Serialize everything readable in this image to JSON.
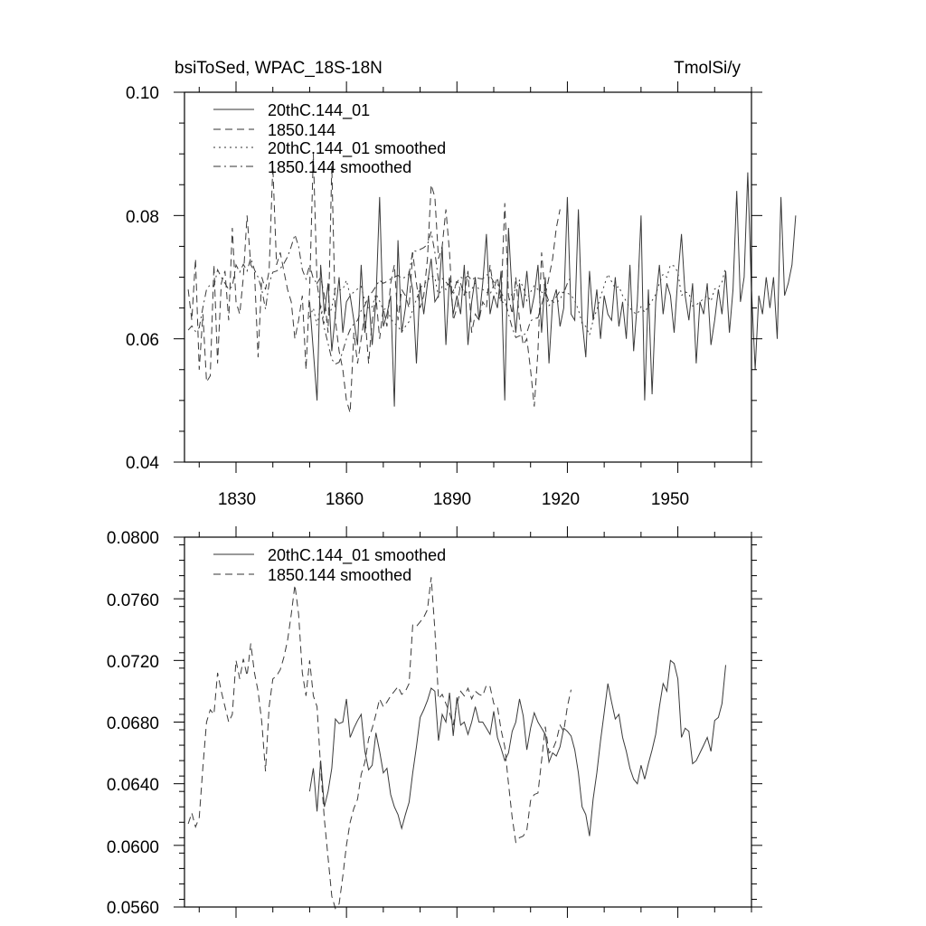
{
  "chart_data": [
    {
      "type": "line",
      "title_left": "bsiToSed, WPAC_18S-18N",
      "title_right": "TmolSi/y",
      "xlim": [
        1816,
        1970
      ],
      "ylim": [
        0.04,
        0.1
      ],
      "xticks": [
        1830,
        1860,
        1890,
        1920,
        1950
      ],
      "xtick_labels": [
        "1830",
        "1860",
        "1890",
        "1920",
        "1950"
      ],
      "yticks": [
        0.04,
        0.06,
        0.08,
        0.1
      ],
      "ytick_labels": [
        "0.04",
        "0.06",
        "0.08",
        "0.10"
      ],
      "legend": [
        "20thC.144_01",
        "1850.144",
        "20thC.144_01 smoothed",
        "1850.144 smoothed"
      ],
      "series": [
        {
          "name": "20thC.144_01",
          "style": "solid",
          "x_start": 1850,
          "values": [
            0.066,
            0.058,
            0.05,
            0.072,
            0.064,
            0.069,
            0.058,
            0.064,
            0.07,
            0.061,
            0.066,
            0.067,
            0.063,
            0.059,
            0.072,
            0.061,
            0.067,
            0.059,
            0.066,
            0.083,
            0.062,
            0.064,
            0.067,
            0.049,
            0.076,
            0.061,
            0.065,
            0.071,
            0.068,
            0.056,
            0.069,
            0.064,
            0.069,
            0.073,
            0.066,
            0.067,
            0.075,
            0.059,
            0.07,
            0.064,
            0.067,
            0.064,
            0.072,
            0.059,
            0.066,
            0.07,
            0.063,
            0.069,
            0.077,
            0.064,
            0.067,
            0.065,
            0.071,
            0.05,
            0.078,
            0.067,
            0.061,
            0.069,
            0.065,
            0.071,
            0.064,
            0.067,
            0.072,
            0.061,
            0.07,
            0.056,
            0.066,
            0.068,
            0.062,
            0.065,
            0.083,
            0.064,
            0.063,
            0.081,
            0.063,
            0.057,
            0.071,
            0.063,
            0.068,
            0.06,
            0.067,
            0.064,
            0.063,
            0.07,
            0.062,
            0.066,
            0.06,
            0.072,
            0.058,
            0.066,
            0.08,
            0.05,
            0.068,
            0.051,
            0.066,
            0.072,
            0.064,
            0.069,
            0.067,
            0.061,
            0.07,
            0.077,
            0.067,
            0.063,
            0.069,
            0.056,
            0.066,
            0.064,
            0.069,
            0.059,
            0.063,
            0.068,
            0.064,
            0.071,
            0.061,
            0.068,
            0.084,
            0.066,
            0.07,
            0.087,
            0.068,
            0.055,
            0.067,
            0.064,
            0.07,
            0.065,
            0.07,
            0.06,
            0.083,
            0.067,
            0.069,
            0.072,
            0.08
          ]
        },
        {
          "name": "1850.144",
          "style": "dashed",
          "x_start": 1817,
          "values": [
            0.068,
            0.063,
            0.073,
            0.055,
            0.064,
            0.053,
            0.054,
            0.072,
            0.056,
            0.069,
            0.071,
            0.063,
            0.078,
            0.066,
            0.064,
            0.07,
            0.08,
            0.072,
            0.071,
            0.057,
            0.07,
            0.068,
            0.071,
            0.088,
            0.072,
            0.074,
            0.071,
            0.068,
            0.066,
            0.06,
            0.063,
            0.067,
            0.055,
            0.068,
            0.09,
            0.069,
            0.07,
            0.067,
            0.061,
            0.088,
            0.063,
            0.058,
            0.055,
            0.05,
            0.048,
            0.061,
            0.056,
            0.06,
            0.064,
            0.056,
            0.063,
            0.067,
            0.06,
            0.065,
            0.062,
            0.069,
            0.072,
            0.063,
            0.068,
            0.067,
            0.065,
            0.074,
            0.069,
            0.065,
            0.067,
            0.073,
            0.085,
            0.083,
            0.073,
            0.075,
            0.081,
            0.074,
            0.063,
            0.065,
            0.069,
            0.067,
            0.071,
            0.061,
            0.064,
            0.063,
            0.066,
            0.065,
            0.072,
            0.068,
            0.07,
            0.066,
            0.082,
            0.067,
            0.064,
            0.07,
            0.063,
            0.059,
            0.06,
            0.055,
            0.049,
            0.058,
            0.074,
            0.067,
            0.07,
            0.073,
            0.078,
            0.081
          ]
        },
        {
          "name": "20thC.144_01 smoothed",
          "style": "dotted",
          "x_start": 1850,
          "values": [
            0.0635,
            0.065,
            0.0622,
            0.0655,
            0.0625,
            0.0635,
            0.065,
            0.0682,
            0.0679,
            0.068,
            0.0695,
            0.067,
            0.0676,
            0.0681,
            0.0685,
            0.0661,
            0.0649,
            0.0652,
            0.0673,
            0.0661,
            0.0647,
            0.065,
            0.0633,
            0.0625,
            0.062,
            0.0611,
            0.062,
            0.0628,
            0.0647,
            0.0664,
            0.0683,
            0.0688,
            0.0694,
            0.0702,
            0.07,
            0.0668,
            0.0685,
            0.068,
            0.0699,
            0.0671,
            0.0696,
            0.0678,
            0.068,
            0.0672,
            0.068,
            0.069,
            0.068,
            0.068,
            0.0676,
            0.0672,
            0.0687,
            0.067,
            0.0663,
            0.0655,
            0.066,
            0.0674,
            0.068,
            0.0695,
            0.0684,
            0.0662,
            0.0676,
            0.0686,
            0.068,
            0.0676,
            0.0672,
            0.0654,
            0.066,
            0.0658,
            0.0664,
            0.0676,
            0.0674,
            0.0671,
            0.0662,
            0.0647,
            0.0625,
            0.062,
            0.0606,
            0.063,
            0.0647,
            0.0668,
            0.0686,
            0.0705,
            0.0693,
            0.0682,
            0.0685,
            0.067,
            0.0661,
            0.065,
            0.0643,
            0.064,
            0.0652,
            0.0643,
            0.0653,
            0.0662,
            0.0672,
            0.069,
            0.0705,
            0.07,
            0.072,
            0.0718,
            0.0708,
            0.067,
            0.0676,
            0.0674,
            0.0653,
            0.0655,
            0.066,
            0.0665,
            0.067,
            0.0661,
            0.0681,
            0.0683,
            0.0692,
            0.0717
          ]
        },
        {
          "name": "1850.144 smoothed",
          "style": "dashdot",
          "x_start": 1817,
          "values": [
            0.0614,
            0.0621,
            0.0612,
            0.0618,
            0.0651,
            0.068,
            0.0688,
            0.0685,
            0.0712,
            0.07,
            0.069,
            0.068,
            0.0685,
            0.072,
            0.0708,
            0.0721,
            0.071,
            0.0731,
            0.0712,
            0.07,
            0.068,
            0.0648,
            0.069,
            0.0708,
            0.071,
            0.0714,
            0.0722,
            0.0733,
            0.075,
            0.0769,
            0.075,
            0.0712,
            0.0697,
            0.072,
            0.0697,
            0.069,
            0.065,
            0.0617,
            0.0592,
            0.0567,
            0.0559,
            0.0562,
            0.058,
            0.06,
            0.0615,
            0.0624,
            0.063,
            0.0646,
            0.0654,
            0.0669,
            0.0676,
            0.0685,
            0.0695,
            0.069,
            0.0693,
            0.0697,
            0.07,
            0.0703,
            0.0698,
            0.07,
            0.0705,
            0.0743,
            0.0742,
            0.0745,
            0.0748,
            0.0753,
            0.0774,
            0.074,
            0.0695,
            0.0698,
            0.0692,
            0.0686,
            0.0678,
            0.0692,
            0.07,
            0.0697,
            0.0702,
            0.0695,
            0.07,
            0.0698,
            0.0697,
            0.0704,
            0.0703,
            0.0692,
            0.069,
            0.0675,
            0.0664,
            0.064,
            0.0618,
            0.0602,
            0.0605,
            0.0606,
            0.061,
            0.0629,
            0.0633,
            0.0634,
            0.0655,
            0.0677,
            0.066,
            0.0662,
            0.0668,
            0.0678,
            0.0674,
            0.069,
            0.0701
          ]
        }
      ]
    },
    {
      "type": "line",
      "title_left": "",
      "title_right": "",
      "xlim": [
        1816,
        1970
      ],
      "ylim": [
        0.056,
        0.08
      ],
      "xticks": [
        1830,
        1860,
        1890,
        1920,
        1950
      ],
      "yticks": [
        0.056,
        0.06,
        0.064,
        0.068,
        0.072,
        0.076,
        0.08
      ],
      "ytick_labels": [
        "0.0560",
        "0.0600",
        "0.0640",
        "0.0680",
        "0.0720",
        "0.0760",
        "0.0800"
      ],
      "legend": [
        "20thC.144_01 smoothed",
        "1850.144 smoothed"
      ],
      "series": [
        {
          "name": "20thC.144_01 smoothed",
          "style": "solid",
          "ref": "20thC.144_01 smoothed"
        },
        {
          "name": "1850.144 smoothed",
          "style": "dashed",
          "ref": "1850.144 smoothed"
        }
      ]
    }
  ]
}
